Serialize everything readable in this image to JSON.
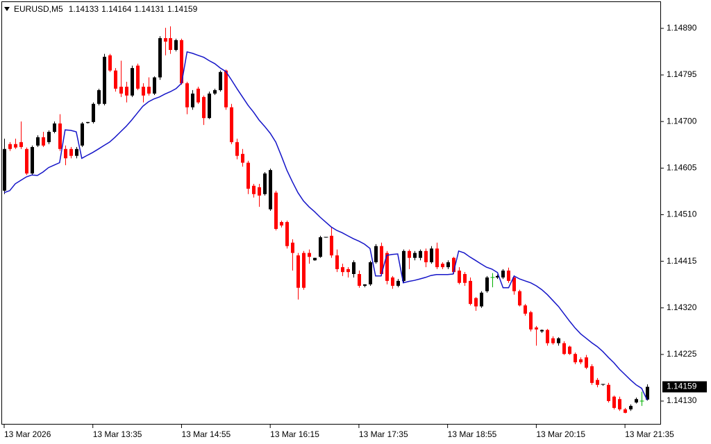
{
  "chart_data": {
    "type": "candlestick",
    "symbol": "EURUSD,M5",
    "up_color": "#000000",
    "down_color": "#ff0000",
    "doji_color": "#00b000",
    "xlim": [
      -0.5,
      118.5
    ],
    "ylim": [
      1.14082,
      1.14945
    ],
    "xticks": [
      {
        "value": 0,
        "label": "13 Mar 2026"
      },
      {
        "value": 16,
        "label": "13 Mar 13:35"
      },
      {
        "value": 32,
        "label": "13 Mar 14:55"
      },
      {
        "value": 48,
        "label": "13 Mar 16:15"
      },
      {
        "value": 64,
        "label": "13 Mar 17:35"
      },
      {
        "value": 80,
        "label": "13 Mar 18:55"
      },
      {
        "value": 96,
        "label": "13 Mar 20:15"
      },
      {
        "value": 112,
        "label": "13 Mar 21:35"
      }
    ],
    "yticks": [
      {
        "value": 1.1489,
        "label": "1.14890"
      },
      {
        "value": 1.14795,
        "label": "1.14795"
      },
      {
        "value": 1.147,
        "label": "1.14700"
      },
      {
        "value": 1.14605,
        "label": "1.14605"
      },
      {
        "value": 1.1451,
        "label": "1.14510"
      },
      {
        "value": 1.14415,
        "label": "1.14415"
      },
      {
        "value": 1.1432,
        "label": "1.14320"
      },
      {
        "value": 1.14225,
        "label": "1.14225"
      },
      {
        "value": 1.1413,
        "label": "1.14130"
      }
    ],
    "open": [
      1.14559,
      1.14654,
      1.14654,
      1.14658,
      1.14644,
      1.14594,
      1.14651,
      1.14668,
      1.14658,
      1.14679,
      1.14696,
      1.14644,
      1.14644,
      1.1463,
      1.14651,
      1.14697,
      1.14699,
      1.14736,
      1.14736,
      1.14835,
      1.14804,
      1.14771,
      1.14771,
      1.14753,
      1.14814,
      1.14771,
      1.14771,
      1.14757,
      1.1479,
      1.1487,
      1.1487,
      1.14846,
      1.14866,
      1.14778,
      1.14729,
      1.14767,
      1.1475,
      1.14707,
      1.14757,
      1.14764,
      1.14804,
      1.14729,
      1.14658,
      1.14634,
      1.14616,
      1.14569,
      1.14566,
      1.14552,
      1.14521,
      1.14555,
      1.14495,
      1.14495,
      1.14453,
      1.14427,
      1.14432,
      1.14432,
      1.14417,
      1.14424,
      1.14463,
      1.14467,
      1.14427,
      1.14403,
      1.14399,
      1.14389,
      1.14389,
      1.14365,
      1.14368,
      1.14413,
      1.14446,
      1.14432,
      1.14382,
      1.14365,
      1.14375,
      1.14436,
      1.14422,
      1.14422,
      1.14436,
      1.14413,
      1.14441,
      1.1441,
      1.14403,
      1.14422,
      1.14396,
      1.14389,
      1.14375,
      1.1434,
      1.14323,
      1.14354,
      1.14382,
      1.14382,
      1.14382,
      1.14396,
      1.14382,
      1.14354,
      1.14325,
      1.14311,
      1.1428,
      1.14272,
      1.14275,
      1.14258,
      1.14248,
      1.14248,
      1.14241,
      1.14226,
      1.14215,
      1.14219,
      1.14201,
      1.14173,
      1.14163,
      1.14163,
      1.14139,
      1.14134,
      1.14113,
      1.14113,
      1.14127,
      1.1413,
      1.14133
    ],
    "high": [
      1.14665,
      1.14658,
      1.14665,
      1.147,
      1.14647,
      1.14651,
      1.14672,
      1.14679,
      1.14682,
      1.147,
      1.14715,
      1.14651,
      1.14648,
      1.14648,
      1.14699,
      1.14699,
      1.14739,
      1.14767,
      1.14838,
      1.14838,
      1.14809,
      1.14824,
      1.14781,
      1.14814,
      1.14818,
      1.14778,
      1.1479,
      1.14792,
      1.14874,
      1.14891,
      1.14894,
      1.14869,
      1.14869,
      1.14781,
      1.14764,
      1.14771,
      1.14753,
      1.14761,
      1.14767,
      1.14804,
      1.14806,
      1.14736,
      1.14665,
      1.14644,
      1.1462,
      1.14573,
      1.14573,
      1.14597,
      1.14604,
      1.14559,
      1.14498,
      1.14498,
      1.1446,
      1.14432,
      1.14436,
      1.14439,
      1.14422,
      1.14467,
      1.14464,
      1.14484,
      1.14439,
      1.1441,
      1.14403,
      1.14417,
      1.14396,
      1.14368,
      1.14416,
      1.1445,
      1.14453,
      1.14436,
      1.14385,
      1.14379,
      1.14439,
      1.14439,
      1.14436,
      1.14439,
      1.14441,
      1.14446,
      1.14453,
      1.14413,
      1.14417,
      1.14424,
      1.14403,
      1.14393,
      1.14382,
      1.14342,
      1.14354,
      1.14385,
      1.14391,
      1.14388,
      1.14399,
      1.14402,
      1.14385,
      1.14357,
      1.14328,
      1.14314,
      1.14283,
      1.14276,
      1.14277,
      1.14262,
      1.1426,
      1.14252,
      1.14243,
      1.14229,
      1.14219,
      1.14224,
      1.14205,
      1.14177,
      1.14165,
      1.14167,
      1.14141,
      1.14139,
      1.14116,
      1.14123,
      1.14137,
      1.14149,
      1.14164
    ],
    "low": [
      1.14552,
      1.1464,
      1.14644,
      1.14644,
      1.14591,
      1.14591,
      1.14648,
      1.14648,
      1.14654,
      1.14676,
      1.1464,
      1.14611,
      1.14625,
      1.14625,
      1.14648,
      1.14696,
      1.14696,
      1.14733,
      1.14733,
      1.14801,
      1.14761,
      1.1475,
      1.14739,
      1.1475,
      1.14764,
      1.14739,
      1.14753,
      1.14754,
      1.14785,
      1.14835,
      1.14838,
      1.14843,
      1.14775,
      1.14715,
      1.14724,
      1.14736,
      1.14693,
      1.14705,
      1.14754,
      1.14761,
      1.14724,
      1.14654,
      1.14623,
      1.14608,
      1.14552,
      1.14545,
      1.14526,
      1.14549,
      1.14518,
      1.14478,
      1.14484,
      1.14441,
      1.14396,
      1.14337,
      1.14357,
      1.1441,
      1.14416,
      1.14422,
      1.14463,
      1.14422,
      1.14393,
      1.14385,
      1.14382,
      1.14382,
      1.14361,
      1.14362,
      1.14365,
      1.1441,
      1.14385,
      1.14368,
      1.14359,
      1.14362,
      1.14371,
      1.14399,
      1.14417,
      1.14417,
      1.14403,
      1.1441,
      1.14399,
      1.14399,
      1.14399,
      1.14389,
      1.14368,
      1.14365,
      1.14325,
      1.14314,
      1.1432,
      1.14351,
      1.14362,
      1.14379,
      1.14379,
      1.14371,
      1.14347,
      1.14323,
      1.14304,
      1.14272,
      1.14243,
      1.14269,
      1.14243,
      1.14245,
      1.14243,
      1.14224,
      1.14224,
      1.14205,
      1.14205,
      1.14195,
      1.14163,
      1.14158,
      1.14161,
      1.14127,
      1.14113,
      1.1411,
      1.14105,
      1.1411,
      1.14125,
      1.1412,
      1.14131
    ],
    "close": [
      1.14644,
      1.14644,
      1.14647,
      1.14648,
      1.14594,
      1.14648,
      1.14668,
      1.14651,
      1.14679,
      1.14696,
      1.14644,
      1.14625,
      1.1463,
      1.14644,
      1.14696,
      1.14699,
      1.14736,
      1.14764,
      1.14832,
      1.14804,
      1.14767,
      1.14757,
      1.14753,
      1.14809,
      1.14767,
      1.14753,
      1.14757,
      1.1479,
      1.1487,
      1.14863,
      1.14846,
      1.14866,
      1.14778,
      1.14729,
      1.14757,
      1.14739,
      1.14707,
      1.14757,
      1.14764,
      1.14801,
      1.14729,
      1.14658,
      1.1463,
      1.14616,
      1.14563,
      1.14552,
      1.14549,
      1.14594,
      1.14601,
      1.14481,
      1.14488,
      1.14446,
      1.14432,
      1.14361,
      1.14361,
      1.14424,
      1.14422,
      1.14464,
      1.14464,
      1.14427,
      1.14399,
      1.14393,
      1.14393,
      1.14413,
      1.14365,
      1.14368,
      1.14413,
      1.14446,
      1.14389,
      1.14375,
      1.14365,
      1.14375,
      1.14436,
      1.14422,
      1.14432,
      1.14436,
      1.14413,
      1.14441,
      1.14403,
      1.14403,
      1.14413,
      1.14393,
      1.14371,
      1.14371,
      1.14328,
      1.14323,
      1.14351,
      1.14382,
      1.14382,
      1.14385,
      1.14396,
      1.14375,
      1.14354,
      1.14325,
      1.14308,
      1.14276,
      1.14276,
      1.14275,
      1.14248,
      1.14248,
      1.14258,
      1.14226,
      1.14226,
      1.14209,
      1.14209,
      1.14198,
      1.14167,
      1.14163,
      1.14164,
      1.1413,
      1.14116,
      1.14113,
      1.14106,
      1.1412,
      1.14134,
      1.1413,
      1.14159
    ],
    "overlay": {
      "color": "#1414c8",
      "values": [
        1.14555,
        1.14559,
        1.14573,
        1.1458,
        1.14587,
        1.14591,
        1.1459,
        1.14597,
        1.14606,
        1.14611,
        1.14616,
        1.14683,
        1.14682,
        1.14679,
        1.14625,
        1.14631,
        1.14637,
        1.14644,
        1.14651,
        1.14658,
        1.14668,
        1.14679,
        1.1469,
        1.14703,
        1.14717,
        1.14731,
        1.1474,
        1.14746,
        1.1475,
        1.14756,
        1.14761,
        1.14767,
        1.14778,
        1.14842,
        1.14839,
        1.14835,
        1.14831,
        1.14824,
        1.14818,
        1.14809,
        1.14802,
        1.14785,
        1.14767,
        1.1475,
        1.14733,
        1.14719,
        1.14703,
        1.1469,
        1.14676,
        1.14658,
        1.1463,
        1.14601,
        1.14577,
        1.14555,
        1.14538,
        1.14526,
        1.14516,
        1.14505,
        1.14495,
        1.14485,
        1.14478,
        1.14473,
        1.14467,
        1.14461,
        1.14456,
        1.1445,
        1.14441,
        1.14385,
        1.14385,
        1.14427,
        1.14429,
        1.1443,
        1.14371,
        1.14374,
        1.14376,
        1.14379,
        1.14382,
        1.14386,
        1.14388,
        1.14388,
        1.14388,
        1.14389,
        1.14436,
        1.14432,
        1.14424,
        1.14417,
        1.1441,
        1.14403,
        1.14399,
        1.14392,
        1.14361,
        1.14361,
        1.14385,
        1.14379,
        1.14375,
        1.14371,
        1.14365,
        1.14357,
        1.14347,
        1.14335,
        1.14323,
        1.14308,
        1.14293,
        1.14279,
        1.14267,
        1.14258,
        1.14249,
        1.14241,
        1.14231,
        1.14219,
        1.14208,
        1.14195,
        1.14184,
        1.14173,
        1.14163,
        1.14156,
        1.14132
      ]
    }
  }
}
